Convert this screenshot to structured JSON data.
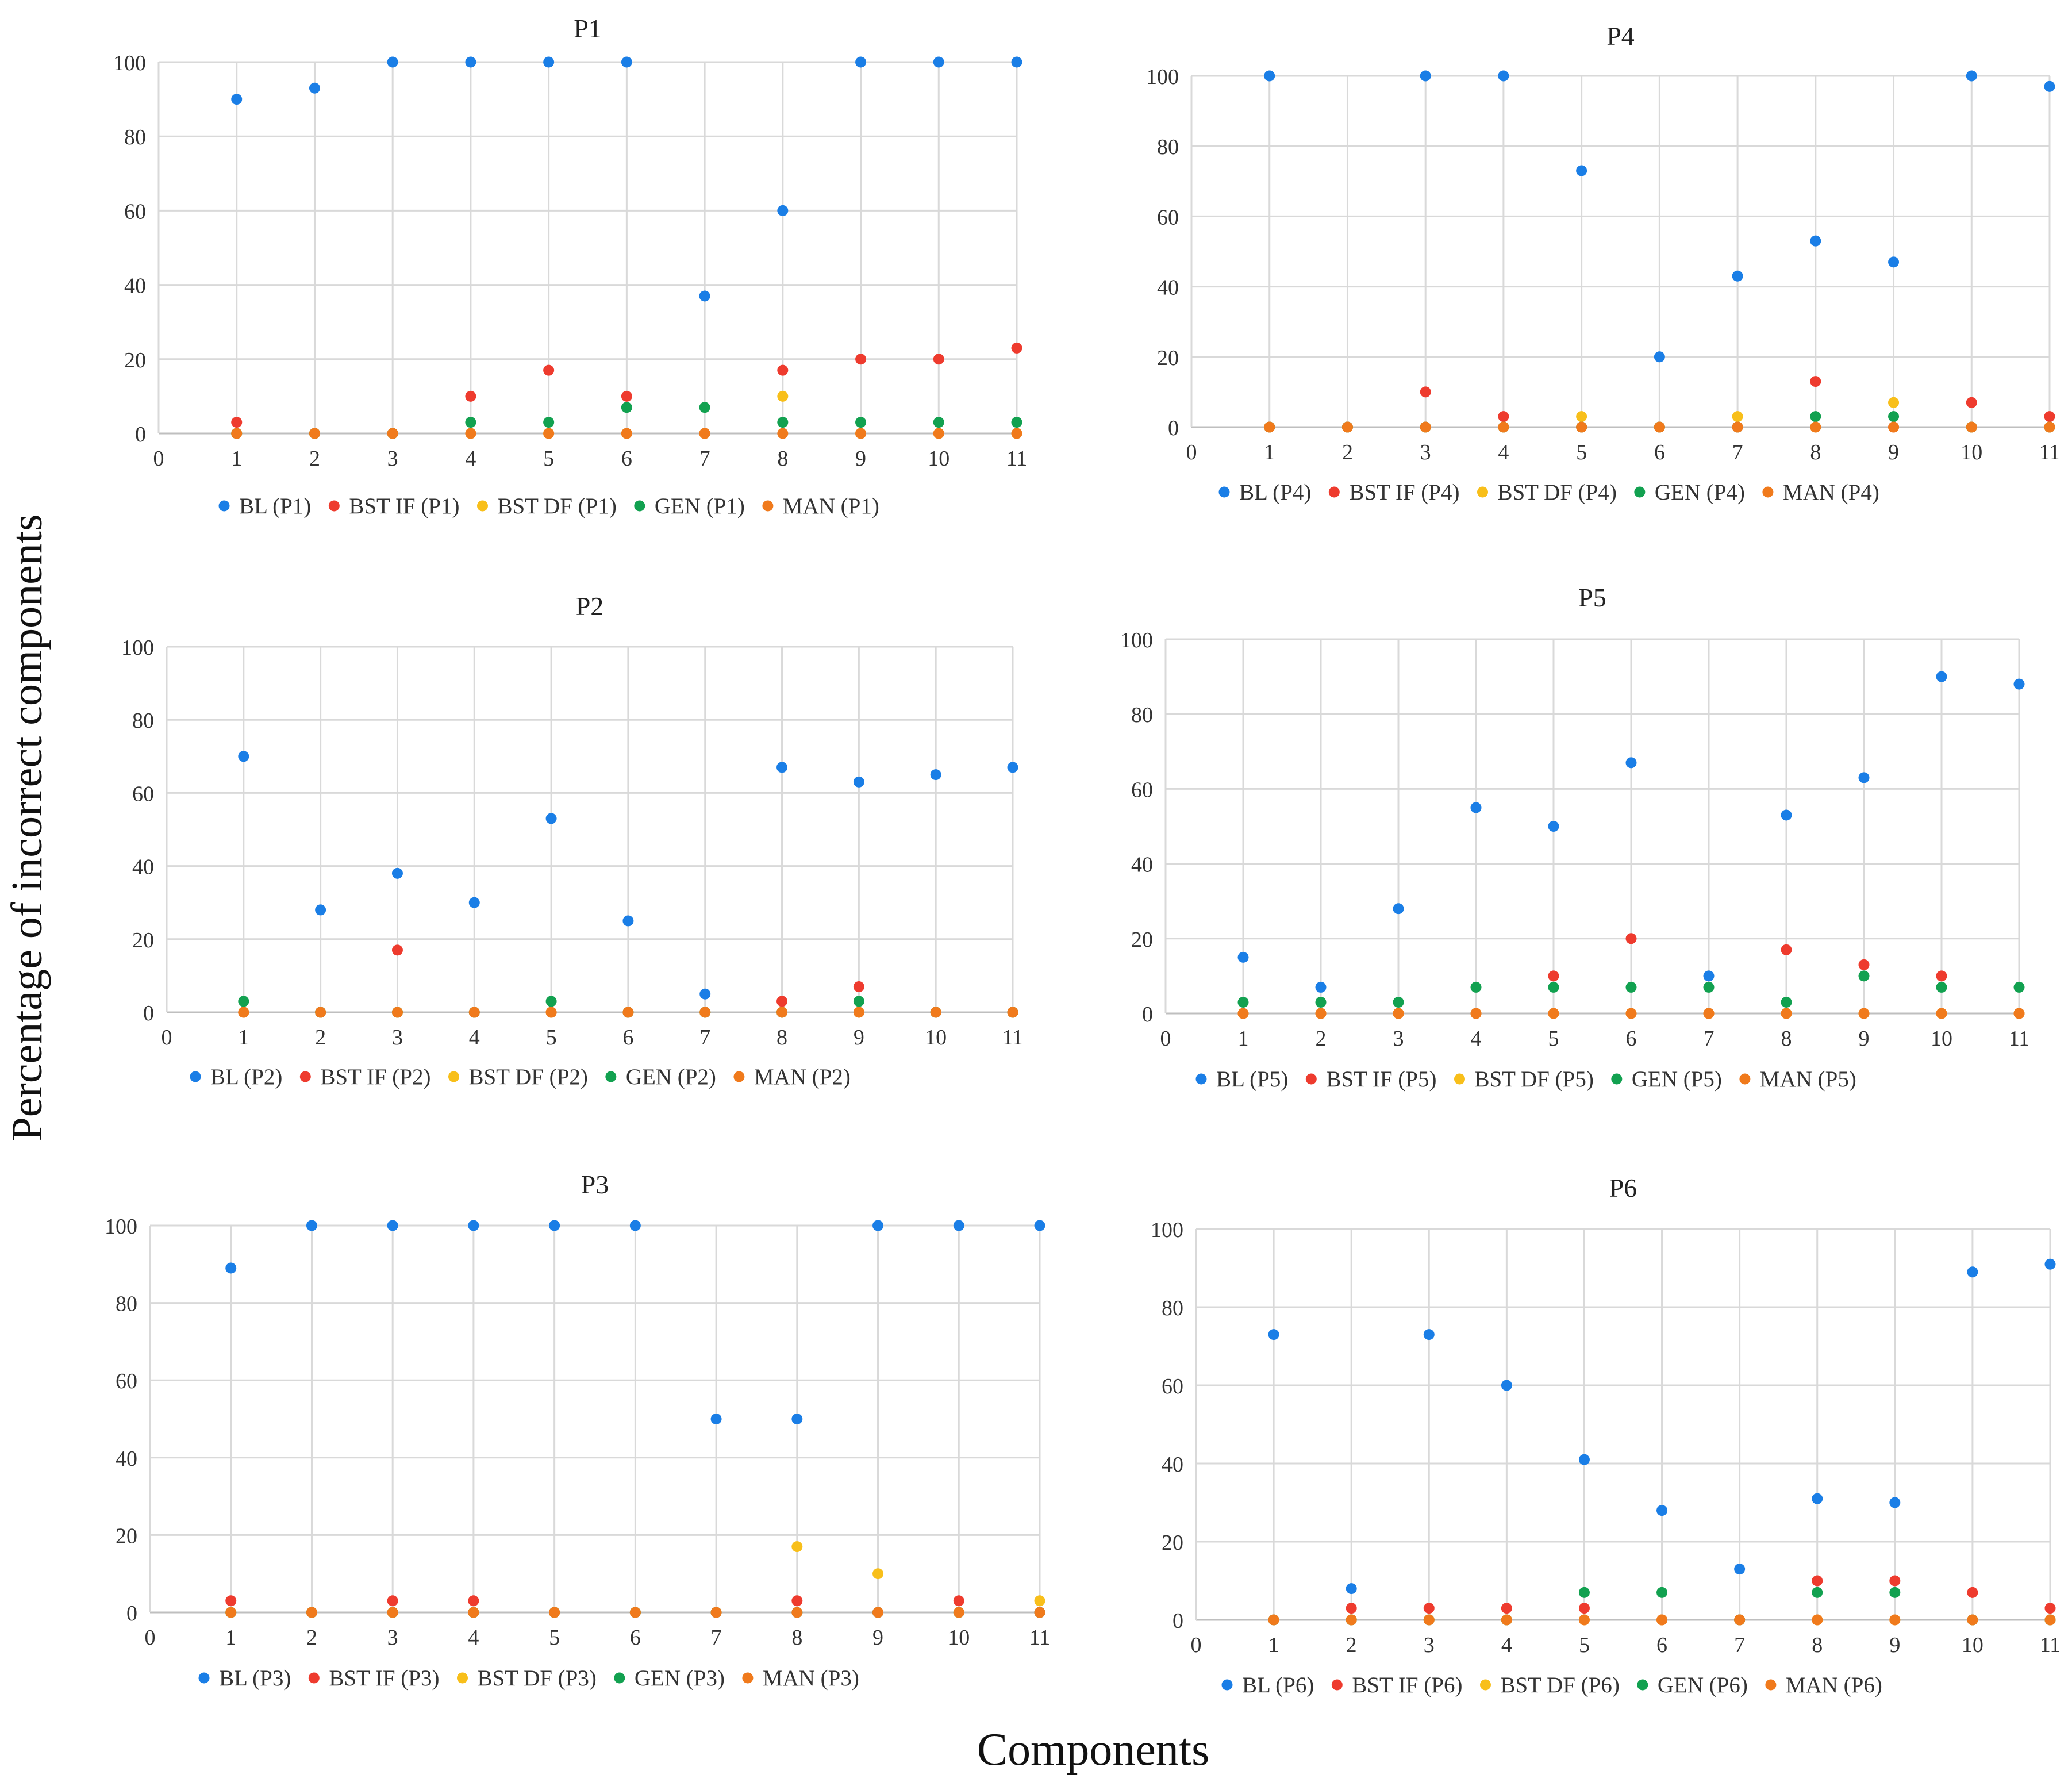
{
  "figure": {
    "ylabel": "Percentage  of incorrect  components",
    "xlabel": "Components"
  },
  "colors": {
    "BL": "#1a7ee6",
    "BST IF": "#ee3b2e",
    "BST DF": "#f8bf1a",
    "GEN": "#12a150",
    "MAN": "#f07a1c",
    "grid": "#d9d9d9"
  },
  "chart_data": [
    {
      "type": "scatter",
      "title": "P1",
      "xlim": [
        0,
        11
      ],
      "ylim": [
        0,
        100
      ],
      "xticks": [
        0,
        1,
        2,
        3,
        4,
        5,
        6,
        7,
        8,
        9,
        10,
        11
      ],
      "yticks": [
        0,
        20,
        40,
        60,
        80,
        100
      ],
      "x": [
        1,
        2,
        3,
        4,
        5,
        6,
        7,
        8,
        9,
        10,
        11
      ],
      "series": [
        {
          "name": "BL (P1)",
          "key": "BL",
          "values": [
            90,
            93,
            100,
            100,
            100,
            100,
            37,
            60,
            100,
            100,
            100
          ]
        },
        {
          "name": "BST IF (P1)",
          "key": "BST IF",
          "values": [
            3,
            0,
            0,
            10,
            17,
            10,
            0,
            17,
            20,
            20,
            23
          ]
        },
        {
          "name": "BST DF (P1)",
          "key": "BST DF",
          "values": [
            0,
            0,
            0,
            0,
            0,
            0,
            0,
            10,
            0,
            0,
            0
          ]
        },
        {
          "name": "GEN (P1)",
          "key": "GEN",
          "values": [
            0,
            0,
            0,
            3,
            3,
            7,
            7,
            3,
            3,
            3,
            3
          ]
        },
        {
          "name": "MAN (P1)",
          "key": "MAN",
          "values": [
            0,
            0,
            0,
            0,
            0,
            0,
            0,
            0,
            0,
            0,
            0
          ]
        }
      ]
    },
    {
      "type": "scatter",
      "title": "P4",
      "xlim": [
        0,
        11
      ],
      "ylim": [
        0,
        100
      ],
      "xticks": [
        0,
        1,
        2,
        3,
        4,
        5,
        6,
        7,
        8,
        9,
        10,
        11
      ],
      "yticks": [
        0,
        20,
        40,
        60,
        80,
        100
      ],
      "x": [
        1,
        2,
        3,
        4,
        5,
        6,
        7,
        8,
        9,
        10,
        11
      ],
      "series": [
        {
          "name": "BL (P4)",
          "key": "BL",
          "values": [
            100,
            0,
            100,
            100,
            73,
            20,
            43,
            53,
            47,
            100,
            97
          ]
        },
        {
          "name": "BST IF (P4)",
          "key": "BST IF",
          "values": [
            0,
            0,
            10,
            3,
            0,
            0,
            0,
            13,
            0,
            7,
            3
          ]
        },
        {
          "name": "BST DF (P4)",
          "key": "BST DF",
          "values": [
            0,
            0,
            0,
            0,
            3,
            0,
            3,
            0,
            7,
            0,
            0
          ]
        },
        {
          "name": "GEN (P4)",
          "key": "GEN",
          "values": [
            0,
            0,
            0,
            0,
            0,
            0,
            0,
            3,
            3,
            0,
            0
          ]
        },
        {
          "name": "MAN (P4)",
          "key": "MAN",
          "values": [
            0,
            0,
            0,
            0,
            0,
            0,
            0,
            0,
            0,
            0,
            0
          ]
        }
      ]
    },
    {
      "type": "scatter",
      "title": "P2",
      "xlim": [
        0,
        11
      ],
      "ylim": [
        0,
        100
      ],
      "xticks": [
        0,
        1,
        2,
        3,
        4,
        5,
        6,
        7,
        8,
        9,
        10,
        11
      ],
      "yticks": [
        0,
        20,
        40,
        60,
        80,
        100
      ],
      "x": [
        1,
        2,
        3,
        4,
        5,
        6,
        7,
        8,
        9,
        10,
        11
      ],
      "series": [
        {
          "name": "BL (P2)",
          "key": "BL",
          "values": [
            70,
            28,
            38,
            30,
            53,
            25,
            5,
            67,
            63,
            65,
            67
          ]
        },
        {
          "name": "BST IF (P2)",
          "key": "BST IF",
          "values": [
            0,
            0,
            17,
            0,
            0,
            0,
            0,
            3,
            7,
            0,
            0
          ]
        },
        {
          "name": "BST DF (P2)",
          "key": "BST DF",
          "values": [
            0,
            0,
            0,
            0,
            0,
            0,
            0,
            0,
            0,
            0,
            0
          ]
        },
        {
          "name": "GEN (P2)",
          "key": "GEN",
          "values": [
            3,
            0,
            0,
            0,
            3,
            0,
            0,
            0,
            3,
            0,
            0
          ]
        },
        {
          "name": "MAN (P2)",
          "key": "MAN",
          "values": [
            0,
            0,
            0,
            0,
            0,
            0,
            0,
            0,
            0,
            0,
            0
          ]
        }
      ]
    },
    {
      "type": "scatter",
      "title": "P5",
      "xlim": [
        0,
        11
      ],
      "ylim": [
        0,
        100
      ],
      "xticks": [
        0,
        1,
        2,
        3,
        4,
        5,
        6,
        7,
        8,
        9,
        10,
        11
      ],
      "yticks": [
        0,
        20,
        40,
        60,
        80,
        100
      ],
      "x": [
        1,
        2,
        3,
        4,
        5,
        6,
        7,
        8,
        9,
        10,
        11
      ],
      "series": [
        {
          "name": "BL (P5)",
          "key": "BL",
          "values": [
            15,
            7,
            28,
            55,
            50,
            67,
            10,
            53,
            63,
            90,
            88
          ]
        },
        {
          "name": "BST IF (P5)",
          "key": "BST IF",
          "values": [
            0,
            0,
            0,
            0,
            10,
            20,
            0,
            17,
            13,
            10,
            0
          ]
        },
        {
          "name": "BST DF (P5)",
          "key": "BST DF",
          "values": [
            0,
            0,
            0,
            0,
            0,
            0,
            0,
            0,
            0,
            0,
            0
          ]
        },
        {
          "name": "GEN (P5)",
          "key": "GEN",
          "values": [
            3,
            3,
            3,
            7,
            7,
            7,
            7,
            3,
            10,
            7,
            7
          ]
        },
        {
          "name": "MAN (P5)",
          "key": "MAN",
          "values": [
            0,
            0,
            0,
            0,
            0,
            0,
            0,
            0,
            0,
            0,
            0
          ]
        }
      ]
    },
    {
      "type": "scatter",
      "title": "P3",
      "xlim": [
        0,
        11
      ],
      "ylim": [
        0,
        100
      ],
      "xticks": [
        0,
        1,
        2,
        3,
        4,
        5,
        6,
        7,
        8,
        9,
        10,
        11
      ],
      "yticks": [
        0,
        20,
        40,
        60,
        80,
        100
      ],
      "x": [
        1,
        2,
        3,
        4,
        5,
        6,
        7,
        8,
        9,
        10,
        11
      ],
      "series": [
        {
          "name": "BL (P3)",
          "key": "BL",
          "values": [
            89,
            100,
            100,
            100,
            100,
            100,
            50,
            50,
            100,
            100,
            100
          ]
        },
        {
          "name": "BST IF (P3)",
          "key": "BST IF",
          "values": [
            3,
            0,
            3,
            3,
            0,
            0,
            0,
            3,
            0,
            3,
            0
          ]
        },
        {
          "name": "BST DF (P3)",
          "key": "BST DF",
          "values": [
            0,
            0,
            0,
            0,
            0,
            0,
            0,
            17,
            10,
            0,
            3
          ]
        },
        {
          "name": "GEN (P3)",
          "key": "GEN",
          "values": [
            0,
            0,
            0,
            0,
            0,
            0,
            0,
            0,
            0,
            0,
            0
          ]
        },
        {
          "name": "MAN (P3)",
          "key": "MAN",
          "values": [
            0,
            0,
            0,
            0,
            0,
            0,
            0,
            0,
            0,
            0,
            0
          ]
        }
      ]
    },
    {
      "type": "scatter",
      "title": "P6",
      "xlim": [
        0,
        11
      ],
      "ylim": [
        0,
        100
      ],
      "xticks": [
        0,
        1,
        2,
        3,
        4,
        5,
        6,
        7,
        8,
        9,
        10,
        11
      ],
      "yticks": [
        0,
        20,
        40,
        60,
        80,
        100
      ],
      "x": [
        1,
        2,
        3,
        4,
        5,
        6,
        7,
        8,
        9,
        10,
        11
      ],
      "series": [
        {
          "name": "BL (P6)",
          "key": "BL",
          "values": [
            73,
            8,
            73,
            60,
            41,
            28,
            13,
            31,
            30,
            89,
            91
          ]
        },
        {
          "name": "BST IF (P6)",
          "key": "BST IF",
          "values": [
            0,
            3,
            3,
            3,
            3,
            0,
            0,
            10,
            10,
            7,
            3
          ]
        },
        {
          "name": "BST DF (P6)",
          "key": "BST DF",
          "values": [
            0,
            0,
            0,
            0,
            0,
            0,
            0,
            0,
            0,
            0,
            0
          ]
        },
        {
          "name": "GEN (P6)",
          "key": "GEN",
          "values": [
            0,
            0,
            0,
            0,
            7,
            7,
            0,
            7,
            7,
            0,
            0
          ]
        },
        {
          "name": "MAN (P6)",
          "key": "MAN",
          "values": [
            0,
            0,
            0,
            0,
            0,
            0,
            0,
            0,
            0,
            0,
            0
          ]
        }
      ]
    }
  ]
}
